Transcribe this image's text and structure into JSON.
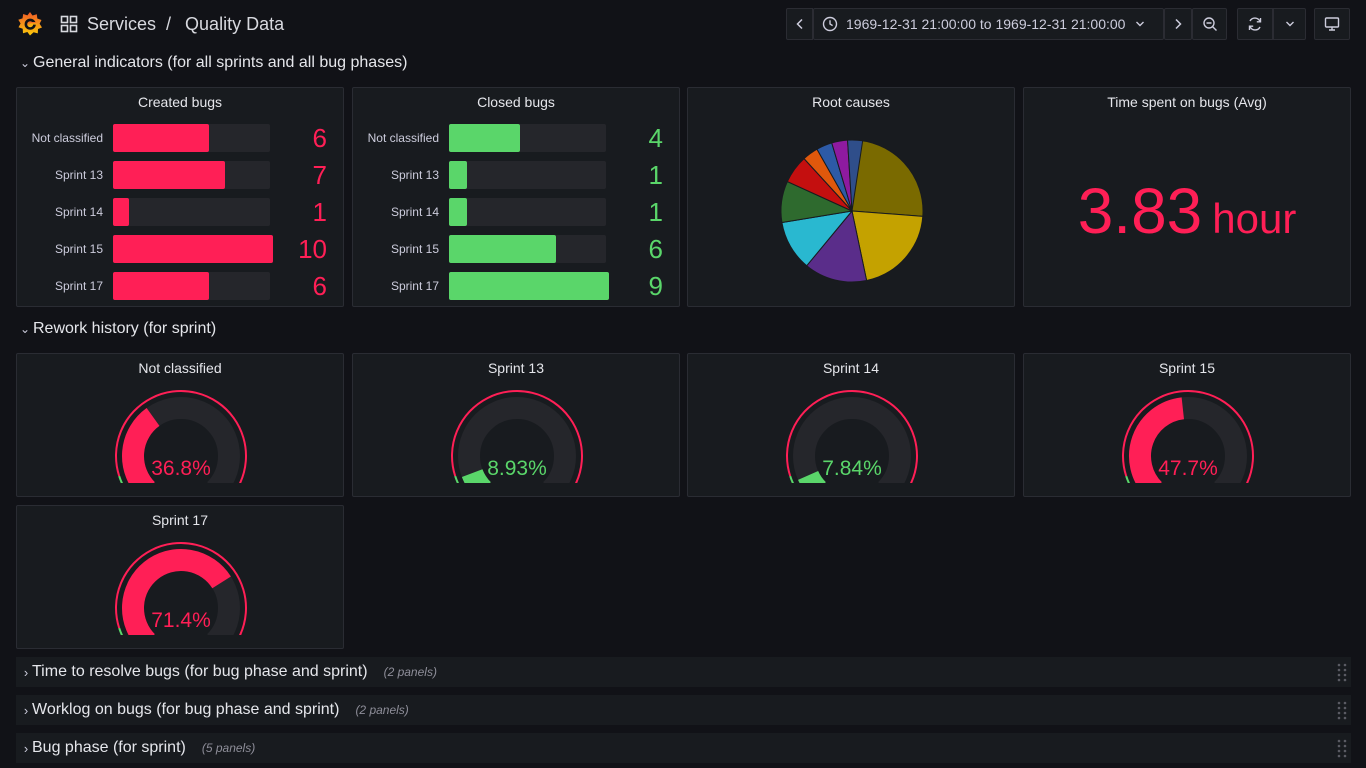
{
  "header": {
    "breadcrumb_parent": "Services",
    "breadcrumb_separator": "/",
    "dashboard_title": "Quality Data",
    "time_range": "1969-12-31 21:00:00 to 1969-12-31 21:00:00"
  },
  "rows": {
    "general": {
      "title": "General indicators (for all sprints and all bug phases)"
    },
    "rework": {
      "title": "Rework history (for sprint)"
    },
    "time_to_resolve": {
      "title": "Time to resolve bugs (for bug phase and sprint)",
      "count": "(2 panels)"
    },
    "worklog": {
      "title": "Worklog on bugs (for bug phase and sprint)",
      "count": "(2 panels)"
    },
    "bug_phase": {
      "title": "Bug phase (for sprint)",
      "count": "(5 panels)"
    }
  },
  "panels": {
    "created": {
      "title": "Created bugs",
      "color": "#ff1f56",
      "max": 10,
      "items": [
        {
          "label": "Not classified",
          "value": "6"
        },
        {
          "label": "Sprint 13",
          "value": "7"
        },
        {
          "label": "Sprint 14",
          "value": "1"
        },
        {
          "label": "Sprint 15",
          "value": "10"
        },
        {
          "label": "Sprint 17",
          "value": "6"
        }
      ]
    },
    "closed": {
      "title": "Closed bugs",
      "color": "#5ad66a",
      "max": 9,
      "items": [
        {
          "label": "Not classified",
          "value": "4"
        },
        {
          "label": "Sprint 13",
          "value": "1"
        },
        {
          "label": "Sprint 14",
          "value": "1"
        },
        {
          "label": "Sprint 15",
          "value": "6"
        },
        {
          "label": "Sprint 17",
          "value": "9"
        }
      ]
    },
    "root_causes": {
      "title": "Root causes",
      "slices": [
        {
          "fraction": 0.262,
          "color": "#7a6a00"
        },
        {
          "fraction": 0.205,
          "color": "#c4a200"
        },
        {
          "fraction": 0.143,
          "color": "#5a2d8a"
        },
        {
          "fraction": 0.114,
          "color": "#29b8d0"
        },
        {
          "fraction": 0.094,
          "color": "#2e6a2e"
        },
        {
          "fraction": 0.064,
          "color": "#c40f0f"
        },
        {
          "fraction": 0.036,
          "color": "#e0580c"
        },
        {
          "fraction": 0.036,
          "color": "#2d5aa6"
        },
        {
          "fraction": 0.036,
          "color": "#8e1aa0"
        },
        {
          "fraction": 0.034,
          "color": "#2f4e8a"
        }
      ]
    },
    "time_spent": {
      "title": "Time spent on bugs (Avg)",
      "value": "3.83",
      "unit": "hour",
      "color": "#ff1f56"
    },
    "gauges": [
      {
        "title": "Not classified",
        "display": "36.8%",
        "value": 36.8,
        "color": "#ff1f56"
      },
      {
        "title": "Sprint 13",
        "display": "8.93%",
        "value": 8.93,
        "color": "#5ad66a"
      },
      {
        "title": "Sprint 14",
        "display": "7.84%",
        "value": 7.84,
        "color": "#5ad66a"
      },
      {
        "title": "Sprint 15",
        "display": "47.7%",
        "value": 47.7,
        "color": "#ff1f56"
      },
      {
        "title": "Sprint 17",
        "display": "71.4%",
        "value": 71.4,
        "color": "#ff1f56"
      }
    ],
    "gauge_threshold_percent": 10
  }
}
